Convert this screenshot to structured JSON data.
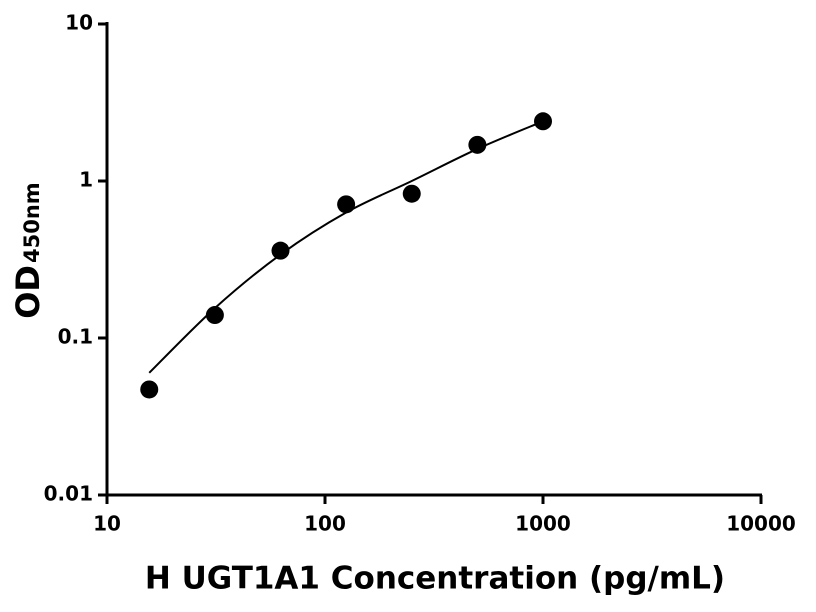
{
  "chart_data": {
    "type": "scatter",
    "xlabel": "H UGT1A1 Concentration (pg/mL)",
    "ylabel": "OD",
    "ylabel_subscript": "450nm",
    "xscale": "log",
    "yscale": "log",
    "xlim": [
      10,
      10000
    ],
    "xticks": [
      10,
      100,
      1000,
      10000
    ],
    "ylim": [
      0.01,
      10
    ],
    "yticks": [
      0.01,
      0.1,
      1,
      10
    ],
    "points": {
      "color": "#000000",
      "x": [
        15.625,
        31.25,
        62.5,
        125,
        250,
        500,
        1000
      ],
      "y": [
        0.047,
        0.14,
        0.36,
        0.71,
        0.83,
        1.7,
        2.4
      ]
    },
    "fit": {
      "color": "#000000",
      "x": [
        15.625,
        31.25,
        62.5,
        125,
        250,
        500,
        1000
      ],
      "y": [
        0.06,
        0.155,
        0.34,
        0.63,
        1.0,
        1.6,
        2.4
      ]
    }
  }
}
